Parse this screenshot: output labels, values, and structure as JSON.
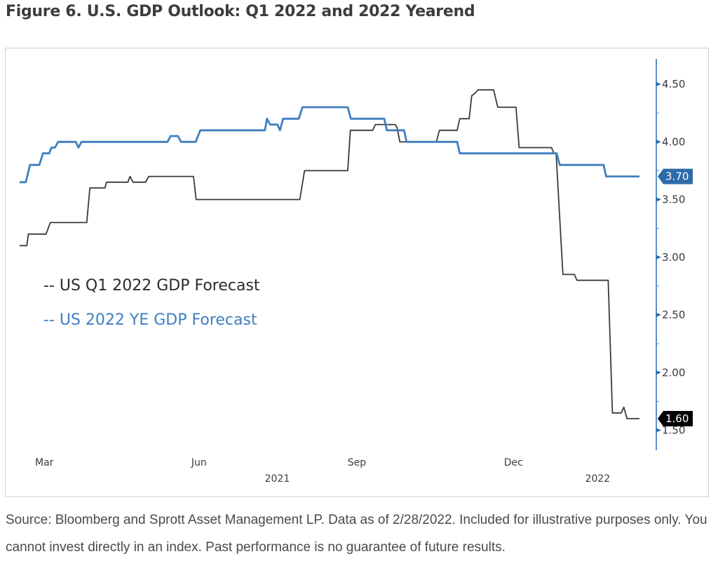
{
  "figure": {
    "title": "Figure 6. U.S. GDP Outlook: Q1 2022 and 2022 Yearend",
    "source": "Source: Bloomberg and Sprott Asset Management LP. Data as of 2/28/2022. Included for illustrative purposes only. You cannot invest directly in an index. Past performance is no guarantee of future results."
  },
  "colors": {
    "q1_series": "#3a3a3a",
    "ye_series": "#3f7fc0",
    "axis": "#5b8fc7",
    "ye_badge": "#2e6aa8",
    "q1_badge": "#000000"
  },
  "chart_data": {
    "type": "line",
    "title": "Figure 6. U.S. GDP Outlook: Q1 2022 and 2022 Yearend",
    "xlabel": "",
    "ylabel": "",
    "x_units": "months since Mar 1, 2021",
    "x_range": [
      -0.5,
      11.4
    ],
    "ylim": [
      1.4,
      4.75
    ],
    "y_axis_side": "right",
    "y_ticks": [
      4.5,
      4.0,
      3.5,
      3.0,
      2.5,
      2.0,
      1.5
    ],
    "y_tick_labels": [
      "4.50",
      "4.00",
      "3.50",
      "3.00",
      "2.50",
      "2.00",
      "1.50"
    ],
    "x_ticks": [
      {
        "x": 0,
        "label": "Mar"
      },
      {
        "x": 3,
        "label": "Jun"
      },
      {
        "x": 6,
        "label": "Sep"
      },
      {
        "x": 9,
        "label": "Dec"
      }
    ],
    "x_year_labels": [
      {
        "x": 4.45,
        "label": "2021"
      },
      {
        "x": 10.6,
        "label": "2022"
      }
    ],
    "grid": false,
    "legend": {
      "placement": "left-middle",
      "entries": [
        {
          "label": "-- US Q1 2022 GDP Forecast",
          "series": "q1"
        },
        {
          "label": "-- US 2022 YE GDP Forecast",
          "series": "ye"
        }
      ]
    },
    "series": [
      {
        "id": "q1",
        "name": "US Q1 2022 GDP Forecast",
        "last_value_label": "1.60",
        "points": [
          [
            -0.5,
            3.1
          ],
          [
            -0.36,
            3.1
          ],
          [
            -0.33,
            3.2
          ],
          [
            0.01,
            3.2
          ],
          [
            0.09,
            3.3
          ],
          [
            0.79,
            3.3
          ],
          [
            0.85,
            3.6
          ],
          [
            1.14,
            3.6
          ],
          [
            1.17,
            3.65
          ],
          [
            1.58,
            3.65
          ],
          [
            1.62,
            3.7
          ],
          [
            1.68,
            3.65
          ],
          [
            1.92,
            3.65
          ],
          [
            1.98,
            3.7
          ],
          [
            2.84,
            3.7
          ],
          [
            2.89,
            3.5
          ],
          [
            4.88,
            3.5
          ],
          [
            4.97,
            3.75
          ],
          [
            5.8,
            3.75
          ],
          [
            5.85,
            4.1
          ],
          [
            6.28,
            4.1
          ],
          [
            6.33,
            4.15
          ],
          [
            6.71,
            4.15
          ],
          [
            6.75,
            4.12
          ],
          [
            6.8,
            4.0
          ],
          [
            7.5,
            4.0
          ],
          [
            7.56,
            4.1
          ],
          [
            7.9,
            4.1
          ],
          [
            7.95,
            4.2
          ],
          [
            8.13,
            4.2
          ],
          [
            8.18,
            4.4
          ],
          [
            8.24,
            4.42
          ],
          [
            8.3,
            4.45
          ],
          [
            8.6,
            4.45
          ],
          [
            8.68,
            4.3
          ],
          [
            9.03,
            4.3
          ],
          [
            9.09,
            3.95
          ],
          [
            9.71,
            3.95
          ],
          [
            9.76,
            3.9
          ],
          [
            9.8,
            3.9
          ],
          [
            9.93,
            2.85
          ],
          [
            10.15,
            2.85
          ],
          [
            10.2,
            2.8
          ],
          [
            10.8,
            2.8
          ],
          [
            10.88,
            1.65
          ],
          [
            11.05,
            1.65
          ],
          [
            11.1,
            1.7
          ],
          [
            11.16,
            1.6
          ],
          [
            11.4,
            1.6
          ]
        ]
      },
      {
        "id": "ye",
        "name": "US 2022 YE GDP Forecast",
        "last_value_label": "3.70",
        "points": [
          [
            -0.5,
            3.65
          ],
          [
            -0.38,
            3.65
          ],
          [
            -0.3,
            3.8
          ],
          [
            -0.12,
            3.8
          ],
          [
            -0.05,
            3.9
          ],
          [
            0.07,
            3.9
          ],
          [
            0.11,
            3.95
          ],
          [
            0.18,
            3.95
          ],
          [
            0.24,
            4.0
          ],
          [
            0.58,
            4.0
          ],
          [
            0.63,
            3.95
          ],
          [
            0.69,
            4.0
          ],
          [
            2.34,
            4.0
          ],
          [
            2.4,
            4.05
          ],
          [
            2.54,
            4.05
          ],
          [
            2.6,
            4.0
          ],
          [
            2.88,
            4.0
          ],
          [
            2.97,
            4.1
          ],
          [
            4.21,
            4.1
          ],
          [
            4.25,
            4.2
          ],
          [
            4.31,
            4.15
          ],
          [
            4.45,
            4.15
          ],
          [
            4.5,
            4.1
          ],
          [
            4.56,
            4.2
          ],
          [
            4.86,
            4.2
          ],
          [
            4.93,
            4.3
          ],
          [
            5.8,
            4.3
          ],
          [
            5.86,
            4.2
          ],
          [
            6.5,
            4.2
          ],
          [
            6.55,
            4.1
          ],
          [
            6.88,
            4.1
          ],
          [
            6.93,
            4.0
          ],
          [
            7.9,
            4.0
          ],
          [
            7.95,
            3.9
          ],
          [
            9.81,
            3.9
          ],
          [
            9.87,
            3.8
          ],
          [
            10.71,
            3.8
          ],
          [
            10.76,
            3.7
          ],
          [
            11.4,
            3.7
          ]
        ]
      }
    ]
  }
}
